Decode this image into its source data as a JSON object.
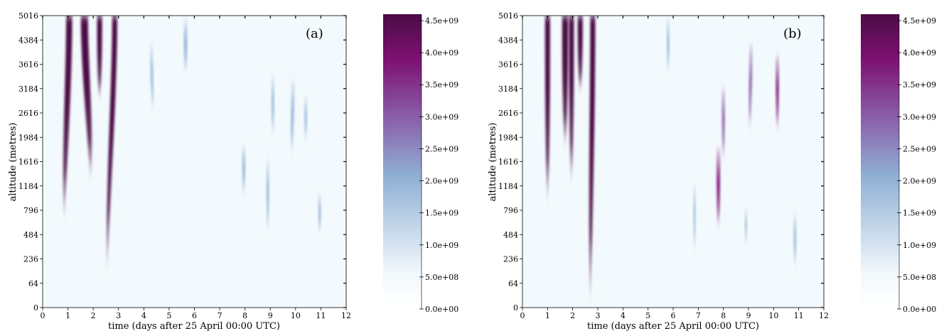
{
  "colors": {
    "background": "#f3fafd",
    "low": "#f2f8fc",
    "mid": "#8fb0d4",
    "midhigh": "#8a5ea8",
    "high": "#7c1072",
    "max": "#4b0c45"
  },
  "chart_data": [
    {
      "type": "heatmap",
      "panel_label": "(a)",
      "xlabel": "time (days after 25 April 00:00 UTC)",
      "ylabel": "altitude (metres)",
      "xlim": [
        0,
        12
      ],
      "x_ticks": [
        "0",
        "1",
        "2",
        "3",
        "4",
        "5",
        "6",
        "7",
        "8",
        "9",
        "10",
        "11",
        "12"
      ],
      "y_ticks": [
        "0",
        "64",
        "236",
        "484",
        "796",
        "1184",
        "1616",
        "1984",
        "2616",
        "3184",
        "3616",
        "4384",
        "5016"
      ],
      "colorbar": {
        "range": [
          0,
          4600000000.0
        ],
        "tick_labels": [
          "0.0e+00",
          "5.0e+08",
          "1.0e+09",
          "1.5e+09",
          "2.0e+09",
          "2.5e+09",
          "3.0e+09",
          "3.5e+09",
          "4.0e+09",
          "4.5e+09"
        ]
      },
      "plumes": [
        {
          "time_bottom": 0.85,
          "time_top": 1.05,
          "level_bottom": 3.5,
          "level_top": 12,
          "peak": 1.0,
          "width": 0.12
        },
        {
          "time_bottom": 1.9,
          "time_top": 1.65,
          "level_bottom": 5.2,
          "level_top": 12,
          "peak": 1.0,
          "width": 0.14
        },
        {
          "time_bottom": 2.25,
          "time_top": 2.25,
          "level_bottom": 8.5,
          "level_top": 12,
          "peak": 0.9,
          "width": 0.1
        },
        {
          "time_bottom": 2.55,
          "time_top": 2.85,
          "level_bottom": 1.3,
          "level_top": 12,
          "peak": 1.0,
          "width": 0.1
        },
        {
          "time_bottom": 4.35,
          "time_top": 4.3,
          "level_bottom": 8.0,
          "level_top": 10.8,
          "peak": 0.3,
          "width": 0.05
        },
        {
          "time_bottom": 5.65,
          "time_top": 5.65,
          "level_bottom": 9.6,
          "level_top": 11.8,
          "peak": 0.25,
          "width": 0.07
        },
        {
          "time_bottom": 7.95,
          "time_top": 7.95,
          "level_bottom": 4.6,
          "level_top": 6.6,
          "peak": 0.3,
          "width": 0.06
        },
        {
          "time_bottom": 8.9,
          "time_top": 8.9,
          "level_bottom": 3.0,
          "level_top": 6.0,
          "peak": 0.08,
          "width": 0.05
        },
        {
          "time_bottom": 9.1,
          "time_top": 9.1,
          "level_bottom": 7.0,
          "level_top": 9.5,
          "peak": 0.08,
          "width": 0.05
        },
        {
          "time_bottom": 9.85,
          "time_top": 9.9,
          "level_bottom": 6.2,
          "level_top": 9.3,
          "peak": 0.25,
          "width": 0.06
        },
        {
          "time_bottom": 10.4,
          "time_top": 10.4,
          "level_bottom": 6.8,
          "level_top": 8.6,
          "peak": 0.2,
          "width": 0.05
        },
        {
          "time_bottom": 10.95,
          "time_top": 10.95,
          "level_bottom": 3.0,
          "level_top": 4.6,
          "peak": 0.12,
          "width": 0.05
        }
      ]
    },
    {
      "type": "heatmap",
      "panel_label": "(b)",
      "xlabel": "time (days after 25 April 00:00 UTC)",
      "ylabel": "altitude (metres)",
      "xlim": [
        0,
        12
      ],
      "x_ticks": [
        "0",
        "1",
        "2",
        "3",
        "4",
        "5",
        "6",
        "7",
        "8",
        "9",
        "10",
        "11",
        "12"
      ],
      "y_ticks": [
        "0",
        "64",
        "236",
        "484",
        "796",
        "1184",
        "1616",
        "1984",
        "2616",
        "3184",
        "3616",
        "4384",
        "5016"
      ],
      "colorbar": {
        "range": [
          0,
          4600000000.0
        ],
        "tick_labels": [
          "0.0e+00",
          "5.0e+08",
          "1.0e+09",
          "1.5e+09",
          "2.0e+09",
          "2.5e+09",
          "3.0e+09",
          "3.5e+09",
          "4.0e+09",
          "4.5e+09"
        ]
      },
      "plumes": [
        {
          "time_bottom": 1.0,
          "time_top": 1.0,
          "level_bottom": 4.2,
          "level_top": 12,
          "peak": 1.0,
          "width": 0.1
        },
        {
          "time_bottom": 1.7,
          "time_top": 1.7,
          "level_bottom": 6.5,
          "level_top": 12,
          "peak": 1.0,
          "width": 0.12
        },
        {
          "time_bottom": 1.95,
          "time_top": 1.95,
          "level_bottom": 5.0,
          "level_top": 12,
          "peak": 0.95,
          "width": 0.1
        },
        {
          "time_bottom": 2.3,
          "time_top": 2.3,
          "level_bottom": 8.8,
          "level_top": 12,
          "peak": 0.95,
          "width": 0.1
        },
        {
          "time_bottom": 2.7,
          "time_top": 2.8,
          "level_bottom": 0.0,
          "level_top": 12,
          "peak": 1.0,
          "width": 0.1
        },
        {
          "time_bottom": 5.8,
          "time_top": 5.8,
          "level_bottom": 9.6,
          "level_top": 11.8,
          "peak": 0.2,
          "width": 0.05
        },
        {
          "time_bottom": 6.85,
          "time_top": 6.85,
          "level_bottom": 2.2,
          "level_top": 5.0,
          "peak": 0.06,
          "width": 0.04
        },
        {
          "time_bottom": 7.8,
          "time_top": 7.8,
          "level_bottom": 3.2,
          "level_top": 6.5,
          "peak": 0.8,
          "width": 0.07
        },
        {
          "time_bottom": 8.0,
          "time_top": 8.0,
          "level_bottom": 6.0,
          "level_top": 9.0,
          "peak": 0.35,
          "width": 0.06
        },
        {
          "time_bottom": 8.9,
          "time_top": 8.9,
          "level_bottom": 2.6,
          "level_top": 4.0,
          "peak": 0.08,
          "width": 0.04
        },
        {
          "time_bottom": 9.05,
          "time_top": 9.1,
          "level_bottom": 7.2,
          "level_top": 10.8,
          "peak": 0.45,
          "width": 0.06
        },
        {
          "time_bottom": 10.15,
          "time_top": 10.15,
          "level_bottom": 7.2,
          "level_top": 10.3,
          "peak": 0.6,
          "width": 0.06
        },
        {
          "time_bottom": 10.85,
          "time_top": 10.85,
          "level_bottom": 1.6,
          "level_top": 3.8,
          "peak": 0.18,
          "width": 0.05
        }
      ]
    }
  ]
}
